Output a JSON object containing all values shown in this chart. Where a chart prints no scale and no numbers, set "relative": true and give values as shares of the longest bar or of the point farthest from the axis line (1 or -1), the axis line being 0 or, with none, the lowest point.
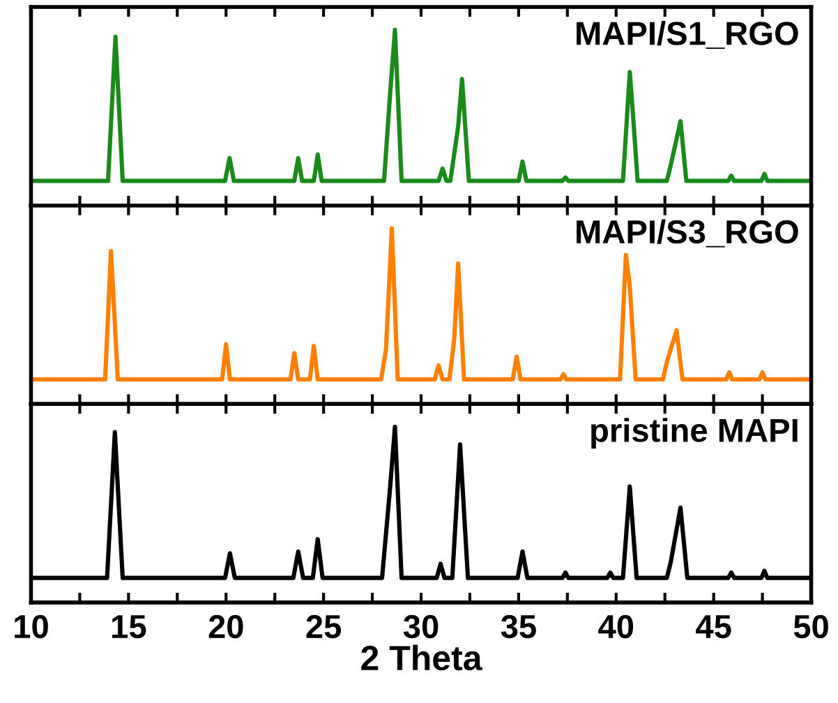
{
  "chart_data": [
    {
      "type": "line",
      "relative": true,
      "tick_labels": false,
      "xlim": [
        10,
        50
      ],
      "xticks": [
        10,
        {
          "value": 12.5,
          "label": null
        },
        15,
        {
          "value": 17.5,
          "label": null
        },
        20,
        {
          "value": 22.5,
          "label": null
        },
        25,
        {
          "value": 27.5,
          "label": null
        },
        30,
        {
          "value": 32.5,
          "label": null
        },
        35,
        {
          "value": 37.5,
          "label": null
        },
        40,
        {
          "value": 42.5,
          "label": null
        },
        45,
        {
          "value": 47.5,
          "label": null
        },
        50
      ],
      "series": [
        {
          "name": "MAPI/S1_RGO",
          "color": "#1a8a1a",
          "x": [
            10,
            13.95,
            14.33,
            14.7,
            19.95,
            20.18,
            20.4,
            23.5,
            23.7,
            23.9,
            24.5,
            24.7,
            24.9,
            28.1,
            28.4,
            28.66,
            29.0,
            30.9,
            31.1,
            31.3,
            31.5,
            31.9,
            32.1,
            32.45,
            35.0,
            35.2,
            35.4,
            37.25,
            37.4,
            37.55,
            40.35,
            40.7,
            40.85,
            41.1,
            42.6,
            42.8,
            43.3,
            43.6,
            45.75,
            45.9,
            46.05,
            47.45,
            47.6,
            47.75,
            50
          ],
          "values": [
            0.14,
            0.14,
            0.96,
            0.14,
            0.14,
            0.27,
            0.14,
            0.14,
            0.27,
            0.14,
            0.14,
            0.29,
            0.14,
            0.14,
            0.62,
            1,
            0.14,
            0.14,
            0.21,
            0.14,
            0.14,
            0.45,
            0.72,
            0.14,
            0.14,
            0.25,
            0.14,
            0.14,
            0.16,
            0.14,
            0.14,
            0.76,
            0.54,
            0.14,
            0.14,
            0.23,
            0.48,
            0.14,
            0.14,
            0.17,
            0.14,
            0.14,
            0.18,
            0.14,
            0.14
          ]
        }
      ]
    },
    {
      "type": "line",
      "relative": true,
      "tick_labels": false,
      "xlim": [
        10,
        50
      ],
      "xticks": [
        10,
        {
          "value": 12.5,
          "label": null
        },
        15,
        {
          "value": 17.5,
          "label": null
        },
        20,
        {
          "value": 22.5,
          "label": null
        },
        25,
        {
          "value": 27.5,
          "label": null
        },
        30,
        {
          "value": 32.5,
          "label": null
        },
        35,
        {
          "value": 37.5,
          "label": null
        },
        40,
        {
          "value": 42.5,
          "label": null
        },
        45,
        {
          "value": 47.5,
          "label": null
        },
        50
      ],
      "series": [
        {
          "name": "MAPI/S3_RGO",
          "color": "#ff8000",
          "x": [
            10,
            13.8,
            14.1,
            14.45,
            19.8,
            20.0,
            20.2,
            23.3,
            23.5,
            23.7,
            24.3,
            24.5,
            24.7,
            27.95,
            28.2,
            28.5,
            28.8,
            30.7,
            30.9,
            31.1,
            31.45,
            31.7,
            31.9,
            32.2,
            34.7,
            34.9,
            35.1,
            37.15,
            37.3,
            37.45,
            40.2,
            40.5,
            40.7,
            41.0,
            42.4,
            42.6,
            43.1,
            43.4,
            45.65,
            45.8,
            45.95,
            47.35,
            47.5,
            47.65,
            50
          ],
          "values": [
            0.14,
            0.14,
            0.87,
            0.14,
            0.14,
            0.34,
            0.14,
            0.14,
            0.29,
            0.14,
            0.14,
            0.33,
            0.14,
            0.14,
            0.31,
            1,
            0.14,
            0.14,
            0.22,
            0.14,
            0.14,
            0.37,
            0.8,
            0.14,
            0.14,
            0.27,
            0.14,
            0.14,
            0.17,
            0.14,
            0.14,
            0.85,
            0.67,
            0.14,
            0.14,
            0.24,
            0.42,
            0.14,
            0.14,
            0.18,
            0.14,
            0.14,
            0.18,
            0.14,
            0.14
          ]
        }
      ]
    },
    {
      "type": "line",
      "relative": true,
      "tick_labels": "x",
      "xlim": [
        10,
        50
      ],
      "xlabel": "2 Theta",
      "xticks": [
        10,
        {
          "value": 12.5,
          "label": null
        },
        15,
        {
          "value": 17.5,
          "label": null
        },
        20,
        {
          "value": 22.5,
          "label": null
        },
        25,
        {
          "value": 27.5,
          "label": null
        },
        30,
        {
          "value": 32.5,
          "label": null
        },
        35,
        {
          "value": 37.5,
          "label": null
        },
        40,
        {
          "value": 42.5,
          "label": null
        },
        45,
        {
          "value": 47.5,
          "label": null
        },
        50
      ],
      "series": [
        {
          "name": "pristine MAPI",
          "color": "#000000",
          "x": [
            10,
            13.9,
            14.3,
            14.7,
            19.95,
            20.2,
            20.45,
            23.45,
            23.7,
            23.95,
            24.45,
            24.7,
            24.95,
            28.0,
            28.4,
            28.66,
            29.0,
            30.8,
            31.0,
            31.2,
            31.6,
            32.0,
            32.4,
            34.95,
            35.2,
            35.45,
            37.25,
            37.4,
            37.55,
            39.55,
            39.7,
            39.85,
            40.35,
            40.7,
            41.05,
            42.6,
            42.8,
            43.3,
            43.65,
            45.75,
            45.9,
            46.05,
            47.45,
            47.6,
            47.75,
            50
          ],
          "values": [
            0.14,
            0.14,
            0.97,
            0.14,
            0.14,
            0.28,
            0.14,
            0.14,
            0.29,
            0.14,
            0.14,
            0.36,
            0.14,
            0.14,
            0.64,
            1,
            0.14,
            0.14,
            0.22,
            0.14,
            0.14,
            0.9,
            0.14,
            0.14,
            0.29,
            0.14,
            0.14,
            0.17,
            0.14,
            0.14,
            0.17,
            0.14,
            0.14,
            0.66,
            0.14,
            0.14,
            0.23,
            0.54,
            0.14,
            0.14,
            0.17,
            0.14,
            0.14,
            0.18,
            0.14,
            0.14
          ]
        }
      ]
    }
  ]
}
